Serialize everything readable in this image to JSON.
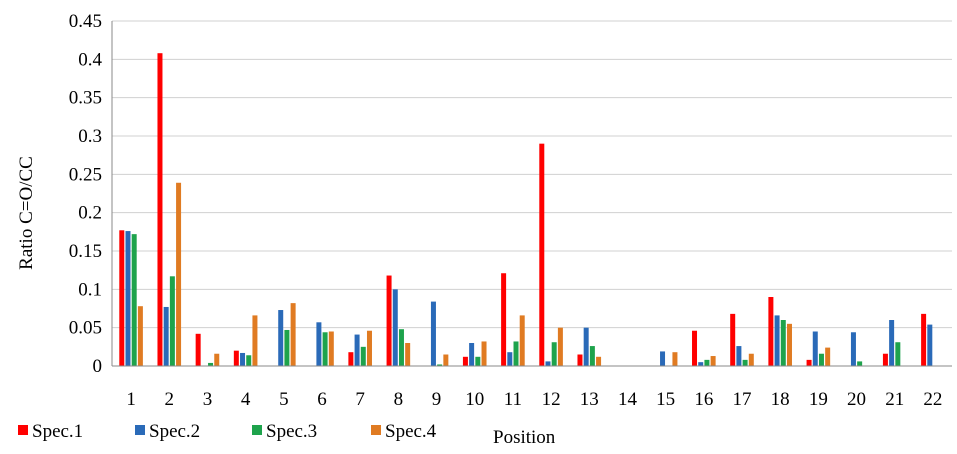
{
  "chart_data": {
    "type": "bar",
    "title": "",
    "xlabel": "Position",
    "ylabel": "Ratio C=O/CC",
    "ylim": [
      0,
      0.45
    ],
    "yticks": [
      "0",
      "0.05",
      "0.1",
      "0.15",
      "0.2",
      "0.25",
      "0.3",
      "0.35",
      "0.4",
      "0.45"
    ],
    "yticks_values": [
      0,
      0.05,
      0.1,
      0.15,
      0.2,
      0.25,
      0.3,
      0.35,
      0.4,
      0.45
    ],
    "grid": "horizontal",
    "legend_position": "bottom-left",
    "categories": [
      "1",
      "2",
      "3",
      "4",
      "5",
      "6",
      "7",
      "8",
      "9",
      "10",
      "11",
      "12",
      "13",
      "14",
      "15",
      "16",
      "17",
      "18",
      "19",
      "20",
      "21",
      "22"
    ],
    "series": [
      {
        "name": "Spec.1",
        "color": "#ff0000",
        "values": [
          0.177,
          0.408,
          0.042,
          0.02,
          0,
          0,
          0.018,
          0.118,
          0,
          0.012,
          0.121,
          0.29,
          0.015,
          0,
          0,
          0.046,
          0.068,
          0.09,
          0.008,
          0,
          0.016,
          0.068
        ]
      },
      {
        "name": "Spec.2",
        "color": "#2a6ab8",
        "values": [
          0.176,
          0.077,
          0,
          0.017,
          0.073,
          0.057,
          0.041,
          0.1,
          0.084,
          0.03,
          0.018,
          0.006,
          0.05,
          0,
          0.019,
          0.005,
          0.026,
          0.066,
          0.045,
          0.044,
          0.06,
          0.054
        ]
      },
      {
        "name": "Spec.3",
        "color": "#1ea34c",
        "values": [
          0.172,
          0.117,
          0.004,
          0.014,
          0.047,
          0.044,
          0.025,
          0.048,
          0.002,
          0.012,
          0.032,
          0.031,
          0.026,
          0,
          0,
          0.008,
          0.008,
          0.06,
          0.016,
          0.006,
          0.031,
          0
        ]
      },
      {
        "name": "Spec.4",
        "color": "#e07b22",
        "values": [
          0.078,
          0.239,
          0.016,
          0.066,
          0.082,
          0.045,
          0.046,
          0.03,
          0.015,
          0.032,
          0.066,
          0.05,
          0.012,
          0,
          0.018,
          0.013,
          0.016,
          0.055,
          0.024,
          0,
          0,
          0
        ]
      }
    ]
  }
}
